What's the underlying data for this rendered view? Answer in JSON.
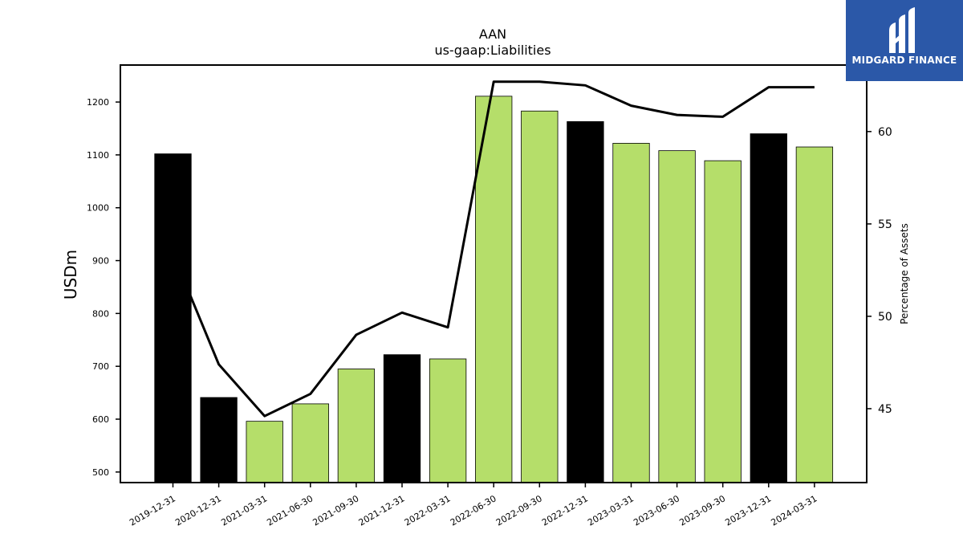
{
  "colors": {
    "bar_annual": "#000000",
    "bar_quarterly": "#b5de6a",
    "line": "#000000",
    "logo_bg": "#2b58a8"
  },
  "logo": {
    "text": "MIDGARD FINANCE",
    "icon": "midgard-logo-icon"
  },
  "chart_data": {
    "type": "bar",
    "title": "AAN",
    "subtitle": "us-gaap:Liabilities",
    "ylabel": "USDm",
    "y2label": "Percentage of Assets",
    "ylim": [
      480,
      1270
    ],
    "y2lim": [
      41,
      63.6
    ],
    "yticks": [
      500,
      600,
      700,
      800,
      900,
      1000,
      1100,
      1200
    ],
    "y2ticks": [
      45,
      50,
      55,
      60
    ],
    "categories": [
      "2019-12-31",
      "2020-12-31",
      "2021-03-31",
      "2021-06-30",
      "2021-09-30",
      "2021-12-31",
      "2022-03-31",
      "2022-06-30",
      "2022-09-30",
      "2022-12-31",
      "2023-03-31",
      "2023-06-30",
      "2023-09-30",
      "2023-12-31",
      "2024-03-31"
    ],
    "series": [
      {
        "values": [
          1102,
          641,
          596,
          629,
          695,
          722,
          714,
          1211,
          1183,
          1163,
          1122,
          1108,
          1089,
          1140,
          1115
        ],
        "color_keys": [
          "bar_annual",
          "bar_annual",
          "bar_quarterly",
          "bar_quarterly",
          "bar_quarterly",
          "bar_annual",
          "bar_quarterly",
          "bar_quarterly",
          "bar_quarterly",
          "bar_annual",
          "bar_quarterly",
          "bar_quarterly",
          "bar_quarterly",
          "bar_annual",
          "bar_quarterly"
        ],
        "axis": "left"
      },
      {
        "values": [
          53.4,
          47.4,
          44.6,
          45.8,
          49.0,
          50.2,
          49.4,
          62.7,
          62.7,
          62.5,
          61.4,
          60.9,
          60.8,
          62.4,
          62.4
        ],
        "axis": "right"
      }
    ],
    "grid": false,
    "legend": "none"
  }
}
